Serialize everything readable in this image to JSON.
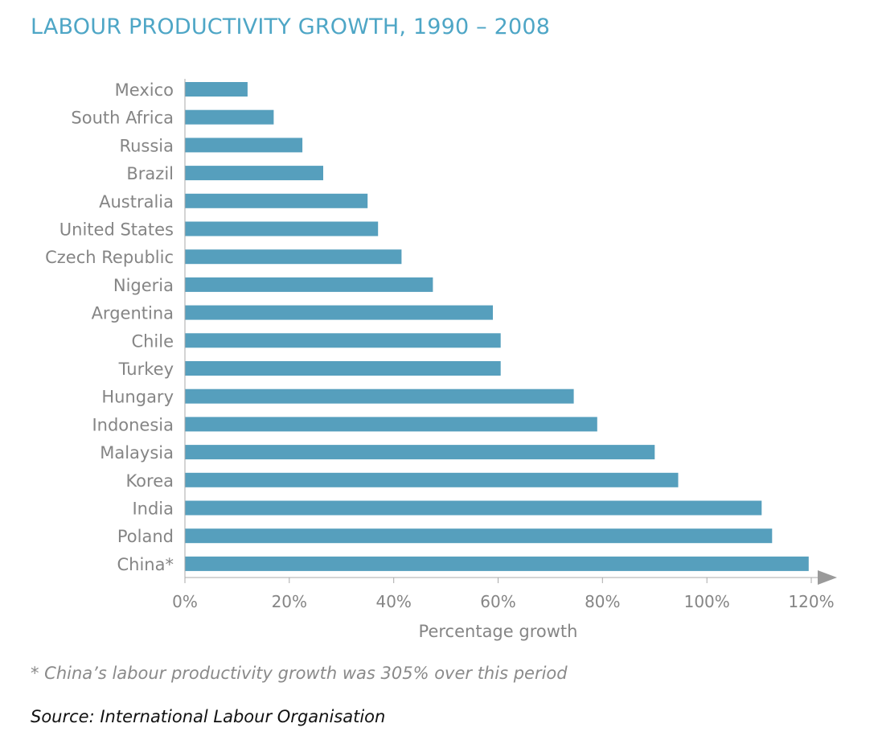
{
  "title": "LABOUR PRODUCTIVITY GROWTH, 1990 – 2008",
  "footnote": "* China’s labour productivity growth was 305% over this period",
  "source": "Source: International Labour Organisation",
  "colors": {
    "bar": "#569fbd",
    "title": "#4ea6c6",
    "text": "#858585",
    "axis": "#aaaaaa"
  },
  "chart_data": {
    "type": "bar",
    "orientation": "horizontal",
    "categories": [
      "Mexico",
      "South Africa",
      "Russia",
      "Brazil",
      "Australia",
      "United States",
      "Czech Republic",
      "Nigeria",
      "Argentina",
      "Chile",
      "Turkey",
      "Hungary",
      "Indonesia",
      "Malaysia",
      "Korea",
      "India",
      "Poland",
      "China*"
    ],
    "values": [
      12,
      17,
      22.5,
      26.5,
      35,
      37,
      41.5,
      47.5,
      59,
      60.5,
      60.5,
      74.5,
      79,
      90,
      94.5,
      110.5,
      112.5,
      119.5
    ],
    "xlabel": "Percentage growth",
    "xlim": [
      0,
      120
    ],
    "xticks": [
      "0%",
      "20%",
      "40%",
      "60%",
      "80%",
      "100%",
      "120%"
    ],
    "grid": false,
    "legend": "none"
  }
}
